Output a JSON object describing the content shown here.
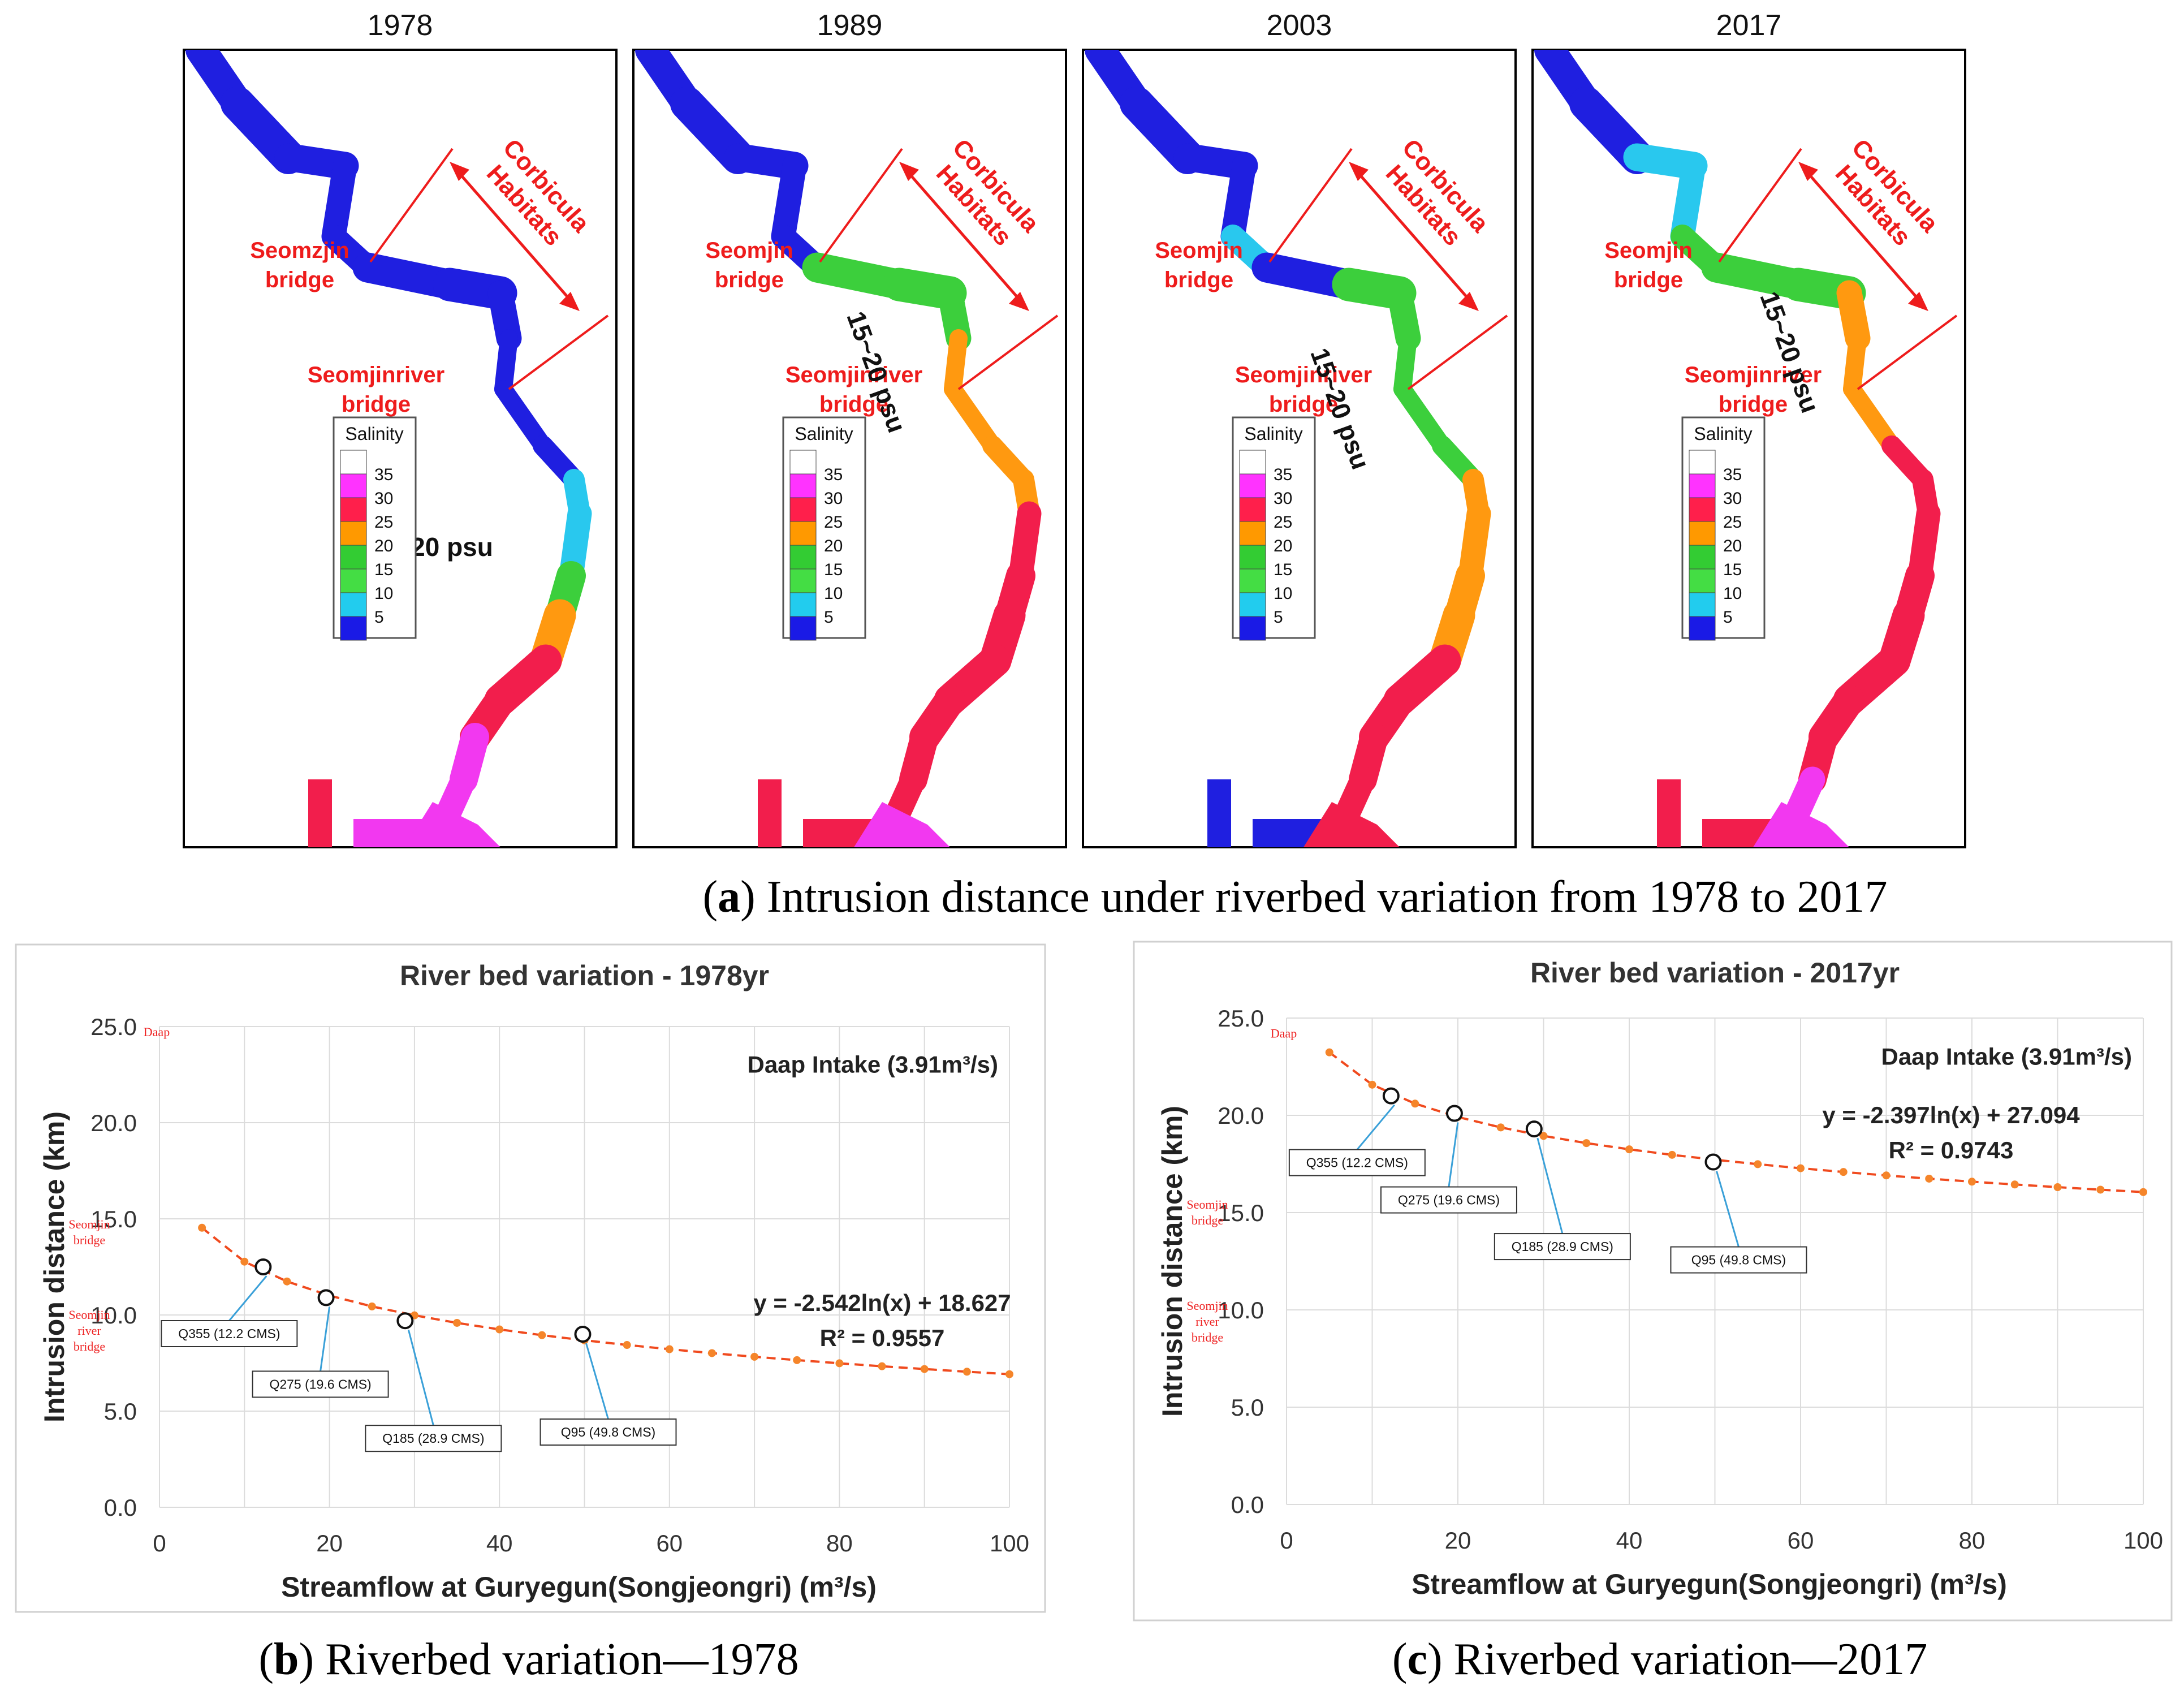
{
  "panel_a": {
    "years": [
      "1978",
      "1989",
      "2003",
      "2017"
    ],
    "corbicula_label": [
      "Corbicula",
      "Habitats"
    ],
    "bridge_upper": [
      "Seomzjin",
      "Seomjin",
      "Seomjin",
      "Seomjin"
    ],
    "bridge_word": "bridge",
    "bridge_lower": "Seomjinriver",
    "psu_label": "15~20 psu",
    "legend_title": "Salinity",
    "legend_values": [
      "35",
      "30",
      "25",
      "20",
      "15",
      "10",
      "5"
    ],
    "legend_colors": [
      "#ffffff",
      "#ff33ff",
      "#ff1f4b",
      "#ff9900",
      "#33cc33",
      "#44dd44",
      "#22ccee",
      "#1a1ae6"
    ],
    "caption_letter": "a",
    "caption_text": " Intrusion distance under riverbed variation from 1978 to 2017"
  },
  "chart_data": [
    {
      "type": "line",
      "title": "River bed variation - 1978yr",
      "xlabel": "Streamflow at Guryegun(Songjeongri) (m³/s)",
      "ylabel": "Intrusion distance (km)",
      "xlim": [
        0,
        100
      ],
      "ylim": [
        0,
        25
      ],
      "x_ticks": [
        "0",
        "20",
        "40",
        "60",
        "80",
        "100"
      ],
      "y_ticks": [
        "0.0",
        "5.0",
        "10.0",
        "15.0",
        "20.0",
        "25.0"
      ],
      "grid": true,
      "intake_label": "Daap Intake (3.91m³/s)",
      "equation": "y = -2.542ln(x) + 18.627",
      "r2": "R² = 0.9557",
      "fit": {
        "a": -2.542,
        "b": 18.627,
        "x": [
          5,
          10,
          15,
          20,
          25,
          30,
          35,
          40,
          45,
          50,
          55,
          60,
          65,
          70,
          75,
          80,
          85,
          90,
          95,
          100
        ]
      },
      "points": [
        {
          "label": "Q355 (12.2 CMS)",
          "x": 12.2,
          "y": 12.5
        },
        {
          "label": "Q275 (19.6 CMS)",
          "x": 19.6,
          "y": 10.9
        },
        {
          "label": "Q185 (28.9 CMS)",
          "x": 28.9,
          "y": 9.7
        },
        {
          "label": "Q95 (49.8 CMS)",
          "x": 49.8,
          "y": 9.0
        }
      ],
      "location_markers": [
        {
          "lines": [
            "Daap"
          ],
          "y": 24.5
        },
        {
          "lines": [
            "Seomjin",
            "bridge"
          ],
          "y": 14.5
        },
        {
          "lines": [
            "Seomjin",
            "river",
            "bridge"
          ],
          "y": 9.8
        }
      ]
    },
    {
      "type": "line",
      "title": "River bed variation - 2017yr",
      "xlabel": "Streamflow at Guryegun(Songjeongri) (m³/s)",
      "ylabel": "Intrusion distance (km)",
      "xlim": [
        0,
        100
      ],
      "ylim": [
        0,
        25
      ],
      "x_ticks": [
        "0",
        "20",
        "40",
        "60",
        "80",
        "100"
      ],
      "y_ticks": [
        "0.0",
        "5.0",
        "10.0",
        "15.0",
        "20.0",
        "25.0"
      ],
      "grid": true,
      "intake_label": "Daap Intake (3.91m³/s)",
      "equation": "y = -2.397ln(x) + 27.094",
      "r2": "R² = 0.9743",
      "fit": {
        "a": -2.397,
        "b": 27.094,
        "x": [
          5,
          10,
          15,
          20,
          25,
          30,
          35,
          40,
          45,
          50,
          55,
          60,
          65,
          70,
          75,
          80,
          85,
          90,
          95,
          100
        ]
      },
      "points": [
        {
          "label": "Q355 (12.2 CMS)",
          "x": 12.2,
          "y": 21.0
        },
        {
          "label": "Q275 (19.6 CMS)",
          "x": 19.6,
          "y": 20.1
        },
        {
          "label": "Q185 (28.9 CMS)",
          "x": 28.9,
          "y": 19.3
        },
        {
          "label": "Q95 (49.8 CMS)",
          "x": 49.8,
          "y": 17.6
        }
      ],
      "location_markers": [
        {
          "lines": [
            "Daap"
          ],
          "y": 24.0
        },
        {
          "lines": [
            "Seomjin",
            "bridge"
          ],
          "y": 15.2
        },
        {
          "lines": [
            "Seomjin",
            "river",
            "bridge"
          ],
          "y": 10.0
        }
      ]
    }
  ],
  "captions": {
    "b_letter": "b",
    "b_text": " Riverbed variation—1978",
    "c_letter": "c",
    "c_text": " Riverbed variation—2017"
  }
}
